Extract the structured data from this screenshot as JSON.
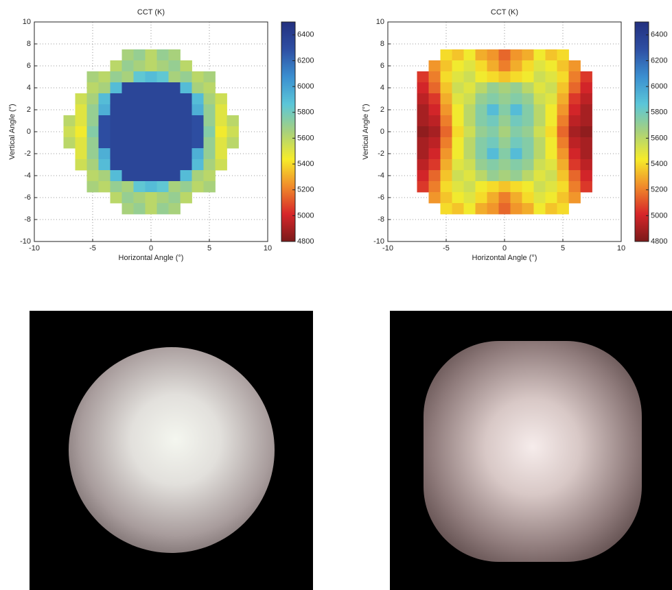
{
  "chart_data": [
    {
      "type": "heatmap",
      "title": "CCT (K)",
      "x_label": "Horizontal Angle (°)",
      "y_label": "Vertical Angle (°)",
      "x": [
        -7,
        -6,
        -5,
        -4,
        -3,
        -2,
        -1,
        0,
        1,
        2,
        3,
        4,
        5,
        6,
        7
      ],
      "y": [
        7,
        6,
        5,
        4,
        3,
        2,
        1,
        0,
        -1,
        -2,
        -3,
        -4,
        -5,
        -6,
        -7
      ],
      "z": [
        [
          null,
          null,
          null,
          null,
          null,
          5650,
          5700,
          5600,
          5700,
          5650,
          null,
          null,
          null,
          null,
          null
        ],
        [
          null,
          null,
          null,
          null,
          5600,
          5700,
          5650,
          5600,
          5650,
          5700,
          5600,
          null,
          null,
          null,
          null
        ],
        [
          null,
          null,
          5650,
          5600,
          5700,
          5650,
          5850,
          5900,
          5850,
          5650,
          5700,
          5600,
          5650,
          null,
          null
        ],
        [
          null,
          null,
          5600,
          5650,
          5900,
          6350,
          6350,
          6350,
          6350,
          6350,
          5900,
          5650,
          5600,
          null,
          null
        ],
        [
          null,
          5550,
          5650,
          5900,
          6350,
          6350,
          6350,
          6350,
          6350,
          6350,
          6350,
          5900,
          5650,
          5550,
          null
        ],
        [
          null,
          5500,
          5700,
          5950,
          6350,
          6350,
          6350,
          6350,
          6350,
          6350,
          6350,
          5950,
          5700,
          5500,
          null
        ],
        [
          5600,
          5500,
          5700,
          6300,
          6350,
          6350,
          6350,
          6350,
          6350,
          6350,
          6350,
          6300,
          5700,
          5500,
          5600
        ],
        [
          5550,
          5450,
          5750,
          6300,
          6350,
          6350,
          6350,
          6350,
          6350,
          6350,
          6350,
          6300,
          5750,
          5450,
          5550
        ],
        [
          5600,
          5500,
          5700,
          6300,
          6350,
          6350,
          6350,
          6350,
          6350,
          6350,
          6350,
          6300,
          5700,
          5500,
          5600
        ],
        [
          null,
          5500,
          5700,
          5950,
          6350,
          6350,
          6350,
          6350,
          6350,
          6350,
          6350,
          5950,
          5700,
          5500,
          null
        ],
        [
          null,
          5550,
          5650,
          5900,
          6350,
          6350,
          6350,
          6350,
          6350,
          6350,
          6350,
          5900,
          5650,
          5550,
          null
        ],
        [
          null,
          null,
          5600,
          5650,
          5900,
          6350,
          6350,
          6350,
          6350,
          6350,
          5900,
          5650,
          5600,
          null,
          null
        ],
        [
          null,
          null,
          5650,
          5600,
          5700,
          5650,
          5850,
          5900,
          5850,
          5650,
          5700,
          5600,
          5650,
          null,
          null
        ],
        [
          null,
          null,
          null,
          null,
          5600,
          5700,
          5650,
          5600,
          5650,
          5700,
          5600,
          null,
          null,
          null,
          null
        ],
        [
          null,
          null,
          null,
          null,
          null,
          5650,
          5700,
          5600,
          5700,
          5650,
          null,
          null,
          null,
          null,
          null
        ]
      ],
      "xlim": [
        -10,
        10
      ],
      "xticks": [
        -10,
        -5,
        0,
        5,
        10
      ],
      "ylim": [
        -10,
        10
      ],
      "yticks": [
        -10,
        -8,
        -6,
        -4,
        -2,
        0,
        2,
        4,
        6,
        8,
        10
      ],
      "grid": true,
      "clim": [
        4800,
        6500
      ],
      "cticks": [
        4800,
        5000,
        5200,
        5400,
        5600,
        5800,
        6000,
        6200,
        6400
      ],
      "colormap": [
        "#7a1a1a",
        "#d7262a",
        "#f08a2b",
        "#f6ec2a",
        "#a8d17c",
        "#5bc6d8",
        "#3b8fd0",
        "#2e4fa3",
        "#23307f"
      ]
    },
    {
      "type": "heatmap",
      "title": "CCT (K)",
      "x_label": "Horizontal Angle (°)",
      "y_label": "Vertical Angle (°)",
      "x": [
        -7,
        -6,
        -5,
        -4,
        -3,
        -2,
        -1,
        0,
        1,
        2,
        3,
        4,
        5,
        6,
        7
      ],
      "y": [
        7,
        6,
        5,
        4,
        3,
        2,
        1,
        0,
        -1,
        -2,
        -3,
        -4,
        -5,
        -6,
        -7
      ],
      "z": [
        [
          null,
          null,
          5400,
          5350,
          5450,
          5300,
          5250,
          5150,
          5250,
          5300,
          5450,
          5350,
          5400,
          null,
          null
        ],
        [
          null,
          5250,
          5350,
          5450,
          5500,
          5400,
          5300,
          5200,
          5300,
          5400,
          5500,
          5450,
          5350,
          5250,
          null
        ],
        [
          5050,
          5200,
          5400,
          5500,
          5550,
          5450,
          5400,
          5350,
          5400,
          5450,
          5550,
          5500,
          5400,
          5200,
          5050
        ],
        [
          5000,
          5150,
          5350,
          5550,
          5500,
          5600,
          5700,
          5650,
          5700,
          5600,
          5500,
          5550,
          5350,
          5150,
          5000
        ],
        [
          4950,
          5050,
          5300,
          5500,
          5550,
          5700,
          5750,
          5700,
          5750,
          5700,
          5550,
          5500,
          5300,
          5050,
          4950
        ],
        [
          4900,
          5000,
          5250,
          5450,
          5600,
          5750,
          5900,
          5750,
          5900,
          5750,
          5600,
          5450,
          5250,
          5000,
          4900
        ],
        [
          4900,
          4950,
          5200,
          5450,
          5600,
          5750,
          5800,
          5700,
          5800,
          5750,
          5600,
          5450,
          5200,
          4950,
          4900
        ],
        [
          4850,
          4900,
          5150,
          5400,
          5550,
          5700,
          5750,
          5650,
          5750,
          5700,
          5550,
          5400,
          5150,
          4900,
          4850
        ],
        [
          4900,
          4950,
          5200,
          5450,
          5600,
          5750,
          5800,
          5700,
          5800,
          5750,
          5600,
          5450,
          5200,
          4950,
          4900
        ],
        [
          4900,
          5000,
          5250,
          5450,
          5600,
          5750,
          5900,
          5750,
          5900,
          5750,
          5600,
          5450,
          5250,
          5000,
          4900
        ],
        [
          4950,
          5050,
          5300,
          5500,
          5550,
          5700,
          5750,
          5700,
          5750,
          5700,
          5550,
          5500,
          5300,
          5050,
          4950
        ],
        [
          5000,
          5150,
          5350,
          5550,
          5500,
          5600,
          5700,
          5650,
          5700,
          5600,
          5500,
          5550,
          5350,
          5150,
          5000
        ],
        [
          5050,
          5200,
          5400,
          5500,
          5550,
          5450,
          5400,
          5350,
          5400,
          5450,
          5550,
          5500,
          5400,
          5200,
          5050
        ],
        [
          null,
          5250,
          5350,
          5450,
          5500,
          5400,
          5300,
          5200,
          5300,
          5400,
          5500,
          5450,
          5350,
          5250,
          null
        ],
        [
          null,
          null,
          5400,
          5350,
          5450,
          5300,
          5250,
          5150,
          5250,
          5300,
          5450,
          5350,
          5400,
          null,
          null
        ]
      ],
      "xlim": [
        -10,
        10
      ],
      "xticks": [
        -10,
        -5,
        0,
        5,
        10
      ],
      "ylim": [
        -10,
        10
      ],
      "yticks": [
        -10,
        -8,
        -6,
        -4,
        -2,
        0,
        2,
        4,
        6,
        8,
        10
      ],
      "grid": true,
      "clim": [
        4800,
        6500
      ],
      "cticks": [
        4800,
        5000,
        5200,
        5400,
        5600,
        5800,
        6000,
        6200,
        6400
      ],
      "colormap": [
        "#7a1a1a",
        "#d7262a",
        "#f08a2b",
        "#f6ec2a",
        "#a8d17c",
        "#5bc6d8",
        "#3b8fd0",
        "#2e4fa3",
        "#23307f"
      ]
    }
  ]
}
